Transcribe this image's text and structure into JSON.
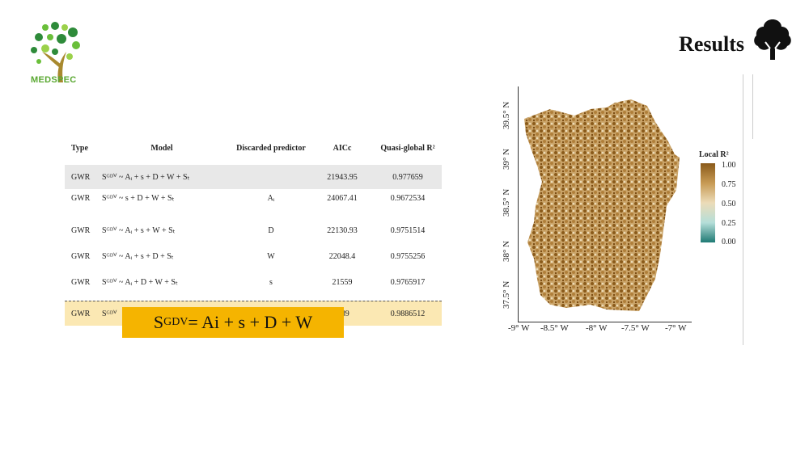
{
  "header": {
    "logo_text": "MEDSPEC",
    "title": "Results",
    "tree_icon": "tree-icon"
  },
  "table": {
    "headers": [
      "Type",
      "Model",
      "Discarded predictor",
      "AICc",
      "Quasi-global R²"
    ],
    "rows": [
      {
        "type": "GWR",
        "model": "Sᴳᴰⱽ ~ Aᵢ + s + D + W + Sₜ",
        "discarded": "",
        "aicc": "21943.95",
        "r2": "0.977659"
      },
      {
        "type": "GWR",
        "model": "Sᴳᴰⱽ ~ s + D + W + Sₜ",
        "discarded": "Aᵢ",
        "aicc": "24067.41",
        "r2": "0.9672534"
      },
      {
        "type": "GWR",
        "model": "Sᴳᴰⱽ ~ Aᵢ + s + W + Sₜ",
        "discarded": "D",
        "aicc": "22130.93",
        "r2": "0.9751514"
      },
      {
        "type": "GWR",
        "model": "Sᴳᴰⱽ ~ Aᵢ + s + D + Sₜ",
        "discarded": "W",
        "aicc": "22048.4",
        "r2": "0.9755256"
      },
      {
        "type": "GWR",
        "model": "Sᴳᴰⱽ ~ Aᵢ + D + W + Sₜ",
        "discarded": "s",
        "aicc": "21559",
        "r2": "0.9765917"
      },
      {
        "type": "GWR",
        "model": "Sᴳᴰⱽ",
        "discarded": "",
        "aicc": "0.89",
        "r2": "0.9886512"
      }
    ]
  },
  "formula": {
    "lhs": "S",
    "sub": "GDV",
    "rhs": " = Ai + s + D + W"
  },
  "map": {
    "legend_title": "Local R²",
    "legend_ticks": [
      "1.00",
      "0.75",
      "0.50",
      "0.25",
      "0.00"
    ],
    "y_ticks": [
      "39.5° N",
      "39° N",
      "38.5° N",
      "38° N",
      "37.5° N"
    ],
    "x_ticks": [
      "-9° W",
      "-8.5° W",
      "-8° W",
      "-7.5° W",
      "-7° W"
    ],
    "colors": {
      "high": "#8a5a1a",
      "mid": "#ecdcb8",
      "low": "#1f7a74"
    }
  }
}
